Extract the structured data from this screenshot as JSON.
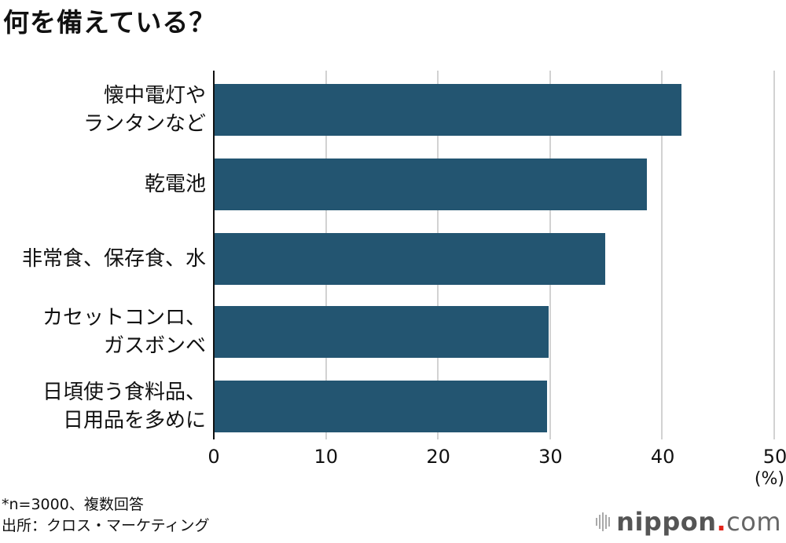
{
  "title": "何を備えている？",
  "chart_data": {
    "type": "bar",
    "orientation": "horizontal",
    "title": "何を備えている？",
    "categories": [
      "懐中電灯やランタンなど",
      "乾電池",
      "非常食、保存食、水",
      "カセットコンロ、ガスボンベ",
      "日頃使う食料品、日用品を多めに"
    ],
    "values": [
      41.7,
      38.6,
      34.9,
      29.8,
      29.7
    ],
    "xlabel": "(%)",
    "ylabel": "",
    "xlim": [
      0,
      50
    ],
    "xticks": [
      0,
      10,
      20,
      30,
      40,
      50
    ],
    "grid": true,
    "bar_color": "#235571"
  },
  "labels": [
    {
      "line1": "懐中電灯や",
      "line2": "ランタンなど"
    },
    {
      "line1": "乾電池",
      "line2": ""
    },
    {
      "line1": "非常食、保存食、水",
      "line2": ""
    },
    {
      "line1": "カセットコンロ、",
      "line2": "ガスボンベ"
    },
    {
      "line1": "日頃使う食料品、",
      "line2": "日用品を多めに"
    }
  ],
  "ticks": [
    "0",
    "10",
    "20",
    "30",
    "40",
    "50"
  ],
  "unit": "(%)",
  "notes": {
    "sample": "*n=3000、複数回答",
    "source": "出所：クロス・マーケティング"
  },
  "logo": {
    "name": "nippon",
    "dot": ".",
    "tld": "com"
  }
}
